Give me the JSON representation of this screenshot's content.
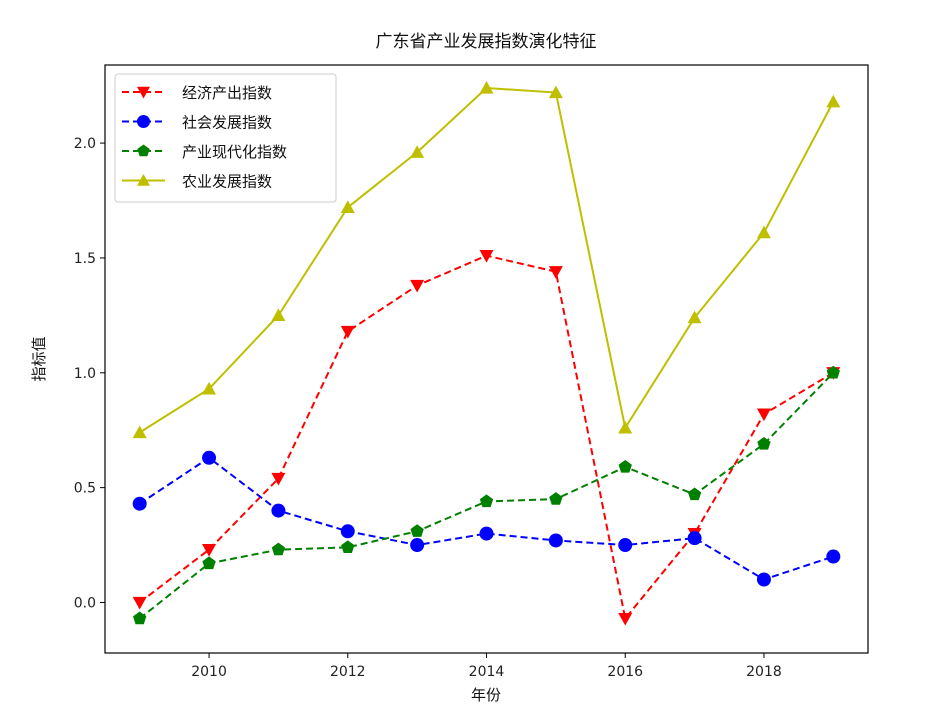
{
  "chart_data": {
    "type": "line",
    "title": "广东省产业发展指数演化特征",
    "xlabel": "年份",
    "ylabel": "指标值",
    "x": [
      2009,
      2010,
      2011,
      2012,
      2013,
      2014,
      2015,
      2016,
      2017,
      2018,
      2019
    ],
    "xticks": [
      2010,
      2012,
      2014,
      2016,
      2018
    ],
    "xtick_labels": [
      "2010",
      "2012",
      "2014",
      "2016",
      "2018"
    ],
    "yticks": [
      0.0,
      0.5,
      1.0,
      1.5,
      2.0
    ],
    "ytick_labels": [
      "0.0",
      "0.5",
      "1.0",
      "1.5",
      "2.0"
    ],
    "xlim": [
      2008.5,
      2019.5
    ],
    "ylim": [
      -0.22,
      2.34
    ],
    "grid": false,
    "legend_position": "upper left",
    "series": [
      {
        "name": "经济产出指数",
        "color": "#ff0000",
        "linestyle": "dashed",
        "marker": "triangle-down",
        "values": [
          0.0,
          0.23,
          0.54,
          1.18,
          1.38,
          1.51,
          1.44,
          -0.07,
          0.3,
          0.82,
          1.0
        ]
      },
      {
        "name": "社会发展指数",
        "color": "#0000ff",
        "linestyle": "dashed",
        "marker": "circle",
        "values": [
          0.43,
          0.63,
          0.4,
          0.31,
          0.25,
          0.3,
          0.27,
          0.25,
          0.28,
          0.1,
          0.2
        ]
      },
      {
        "name": "产业现代化指数",
        "color": "#008000",
        "linestyle": "dashed",
        "marker": "pentagon",
        "values": [
          -0.07,
          0.17,
          0.23,
          0.24,
          0.31,
          0.44,
          0.45,
          0.59,
          0.47,
          0.69,
          1.0
        ]
      },
      {
        "name": "农业发展指数",
        "color": "#bfbf00",
        "linestyle": "solid",
        "marker": "triangle-up",
        "values": [
          0.74,
          0.93,
          1.25,
          1.72,
          1.96,
          2.24,
          2.22,
          0.76,
          1.24,
          1.61,
          2.18
        ]
      }
    ]
  }
}
